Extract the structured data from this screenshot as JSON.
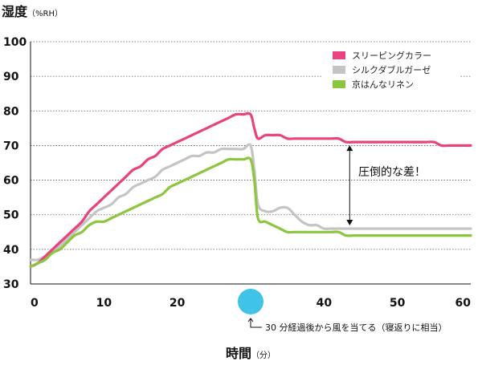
{
  "chart_data": {
    "type": "line",
    "title": "湿度",
    "ylabel": "湿度",
    "ylabel_unit": "（%RH）",
    "xlabel": "時間",
    "xlabel_unit": "（分）",
    "xlim": [
      0,
      60
    ],
    "ylim": [
      30,
      100
    ],
    "x_ticks": [
      0,
      10,
      20,
      30,
      40,
      50,
      60
    ],
    "y_ticks": [
      30,
      40,
      50,
      60,
      70,
      80,
      90,
      100
    ],
    "grid": "horizontal-dotted",
    "legend_position": "top-right",
    "highlight_x": 30,
    "highlight_color": "#3fc3e8",
    "x": [
      0,
      1,
      2,
      3,
      4,
      5,
      6,
      7,
      8,
      9,
      10,
      11,
      12,
      13,
      14,
      15,
      16,
      17,
      18,
      19,
      20,
      21,
      22,
      23,
      24,
      25,
      26,
      27,
      28,
      29,
      30,
      30.5,
      31,
      32,
      33,
      34,
      35,
      36,
      37,
      38,
      39,
      40,
      41,
      42,
      43,
      44,
      45,
      46,
      47,
      48,
      49,
      50,
      51,
      52,
      53,
      54,
      55,
      56,
      57,
      58,
      59,
      60
    ],
    "series": [
      {
        "name": "スリーピングカラー",
        "color": "#e8427f",
        "values": [
          35,
          36,
          38,
          40,
          42,
          44,
          46,
          48,
          51,
          53,
          55,
          57,
          59,
          61,
          63,
          64,
          66,
          67,
          69,
          70,
          71,
          72,
          73,
          74,
          75,
          76,
          77,
          78,
          79,
          79,
          79,
          75,
          72,
          73,
          73,
          73,
          72,
          72,
          72,
          72,
          72,
          72,
          72,
          72,
          71,
          71,
          71,
          71,
          71,
          71,
          71,
          71,
          71,
          71,
          71,
          71,
          71,
          70,
          70,
          70,
          70,
          70
        ]
      },
      {
        "name": "シルクダブルガーゼ",
        "color": "#c4c4c4",
        "values": [
          37,
          37,
          38,
          39,
          41,
          43,
          45,
          47,
          49,
          51,
          52,
          53,
          55,
          56,
          58,
          59,
          60,
          61,
          63,
          64,
          65,
          66,
          67,
          67,
          68,
          68,
          69,
          69,
          69,
          69,
          70,
          63,
          53,
          51,
          51,
          52,
          52,
          50,
          48,
          47,
          47,
          46,
          46,
          46,
          46,
          46,
          46,
          46,
          46,
          46,
          46,
          46,
          46,
          46,
          46,
          46,
          46,
          46,
          46,
          46,
          46,
          46
        ]
      },
      {
        "name": "京はんなリネン",
        "color": "#8cc63f",
        "values": [
          35,
          36,
          37,
          39,
          40,
          42,
          44,
          45,
          47,
          48,
          48,
          49,
          50,
          51,
          52,
          53,
          54,
          55,
          56,
          58,
          59,
          60,
          61,
          62,
          63,
          64,
          65,
          66,
          66,
          66,
          66,
          60,
          49,
          48,
          47,
          46,
          45,
          45,
          45,
          45,
          45,
          45,
          45,
          45,
          44,
          44,
          44,
          44,
          44,
          44,
          44,
          44,
          44,
          44,
          44,
          44,
          44,
          44,
          44,
          44,
          44,
          44
        ]
      }
    ],
    "annotations": {
      "difference_label": "圧倒的な差！",
      "arrow_x": 43.5,
      "arrow_from": 71,
      "arrow_to": 46,
      "note_label": "30 分経過後から風を当てる（寝返りに相当）"
    }
  }
}
